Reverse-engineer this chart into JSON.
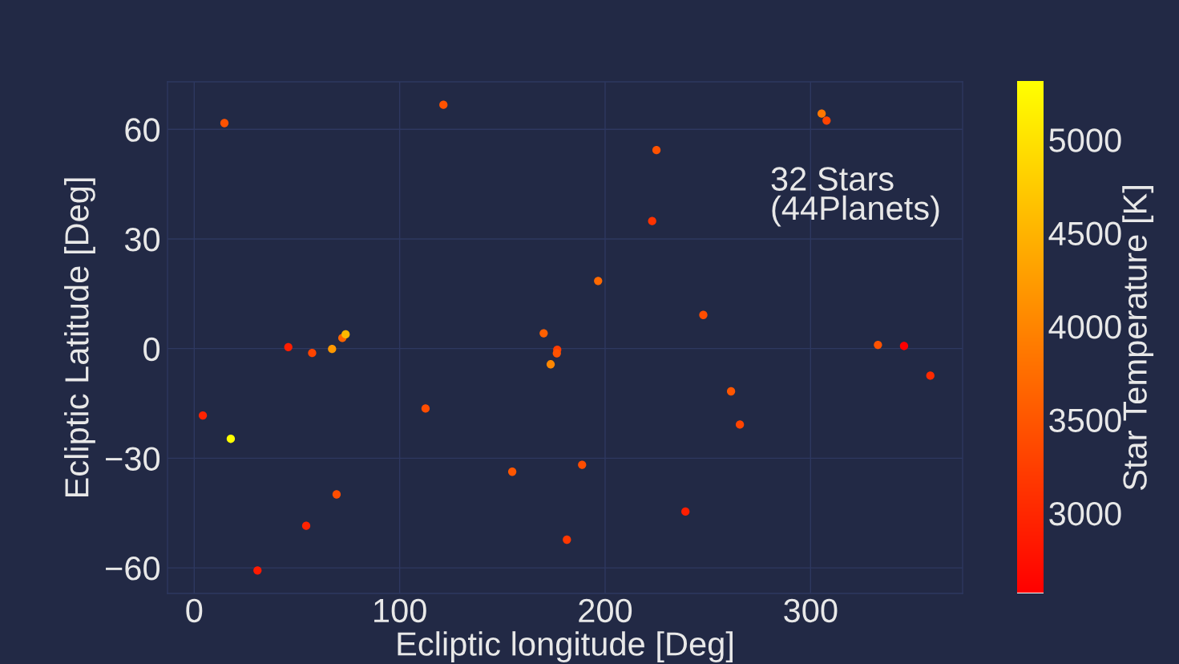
{
  "chart_data": {
    "type": "scatter",
    "xlabel": "Ecliptic longitude [Deg]",
    "ylabel": "Ecliptic Latitude [Deg]",
    "clabel": "Star Temperature [K]",
    "annotations": [
      "32 Stars\n(44Planets)"
    ],
    "x": [
      14.7,
      4.2,
      17.8,
      45.8,
      57.4,
      67.1,
      72.1,
      73.7,
      69.3,
      54.5,
      30.8,
      112.6,
      121.3,
      225.0,
      222.9,
      196.6,
      247.8,
      170.1,
      176.7,
      176.5,
      173.5,
      261.3,
      265.6,
      154.8,
      188.8,
      239.1,
      181.4,
      305.4,
      307.8,
      332.8,
      345.5,
      358.3
    ],
    "values": [
      61.7,
      -18.3,
      -24.7,
      0.4,
      -1.2,
      -0.1,
      2.9,
      3.9,
      -39.9,
      -48.5,
      -60.7,
      -16.4,
      66.7,
      54.3,
      34.9,
      18.5,
      9.2,
      4.2,
      -0.3,
      -1.3,
      -4.3,
      -11.7,
      -20.8,
      -33.7,
      -31.8,
      -44.6,
      -52.3,
      64.3,
      62.4,
      1.0,
      0.7,
      -7.4
    ],
    "cvalues": [
      3450,
      2950,
      5310,
      2900,
      3300,
      4200,
      3650,
      4550,
      3400,
      2950,
      2850,
      3400,
      3450,
      3450,
      3120,
      3700,
      3400,
      3600,
      3230,
      3450,
      4020,
      3500,
      3300,
      3500,
      3400,
      2900,
      3180,
      3850,
      3300,
      3450,
      2570,
      3020
    ],
    "xlim": [
      -13,
      374
    ],
    "ylim": [
      -67,
      73
    ],
    "xticks": [
      0,
      100,
      200,
      300
    ],
    "yticks": [
      {
        "value": -60,
        "label": "−60"
      },
      {
        "value": -30,
        "label": "−30"
      },
      0,
      30,
      60
    ],
    "clim": [
      2570,
      5310
    ],
    "cticks": [
      3000,
      3500,
      4000,
      4500,
      5000
    ],
    "grid": true,
    "marker": "circle"
  }
}
